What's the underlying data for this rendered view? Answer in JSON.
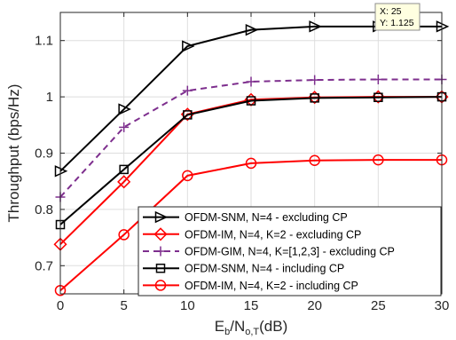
{
  "chart_data": {
    "type": "line",
    "xlabel": {
      "main": "E",
      "sub1": "b",
      "mid": "/N",
      "sub2": "o,T",
      "tail": "(dB)"
    },
    "ylabel": "Throughput (bps/Hz)",
    "x": [
      0,
      5,
      10,
      15,
      20,
      25,
      30
    ],
    "xlim": [
      0,
      30
    ],
    "ylim": [
      0.65,
      1.15
    ],
    "xticks": [
      "0",
      "5",
      "10",
      "15",
      "20",
      "25",
      "30"
    ],
    "yticks": [
      {
        "value": 0.7,
        "label": "0.7"
      },
      {
        "value": 0.8,
        "label": "0.8"
      },
      {
        "value": 0.9,
        "label": "0.9"
      },
      {
        "value": 1.0,
        "label": "1"
      },
      {
        "value": 1.1,
        "label": "1.1"
      }
    ],
    "grid": true,
    "legend_position": "bottom-right",
    "series": [
      {
        "name": "OFDM-SNM, N=4 - excluding CP",
        "color": "#000000",
        "marker": "triangle-right",
        "dash": "solid",
        "values": [
          0.868,
          0.978,
          1.09,
          1.119,
          1.125,
          1.125,
          1.125
        ]
      },
      {
        "name": "OFDM-IM, N=4, K=2 - excluding CP",
        "color": "#ff0000",
        "marker": "diamond",
        "dash": "solid",
        "values": [
          0.738,
          0.849,
          0.969,
          0.995,
          0.999,
          1.0,
          1.0
        ]
      },
      {
        "name": "OFDM-GIM, N=4,  K=[1,2,3] - excluding CP",
        "color": "#7e2f8e",
        "marker": "plus",
        "dash": "dashed",
        "values": [
          0.822,
          0.946,
          1.011,
          1.027,
          1.03,
          1.031,
          1.031
        ]
      },
      {
        "name": "OFDM-SNM, N=4  - including CP",
        "color": "#000000",
        "marker": "square",
        "dash": "solid",
        "values": [
          0.773,
          0.871,
          0.968,
          0.993,
          0.998,
          0.999,
          1.0
        ]
      },
      {
        "name": "OFDM-IM, N=4, K=2 - including CP",
        "color": "#ff0000",
        "marker": "circle",
        "dash": "solid",
        "values": [
          0.656,
          0.755,
          0.86,
          0.882,
          0.887,
          0.888,
          0.888
        ]
      }
    ],
    "datatip": {
      "x_text": "X: 25",
      "y_text": "Y: 1.125",
      "x": 25,
      "y": 1.125
    }
  }
}
